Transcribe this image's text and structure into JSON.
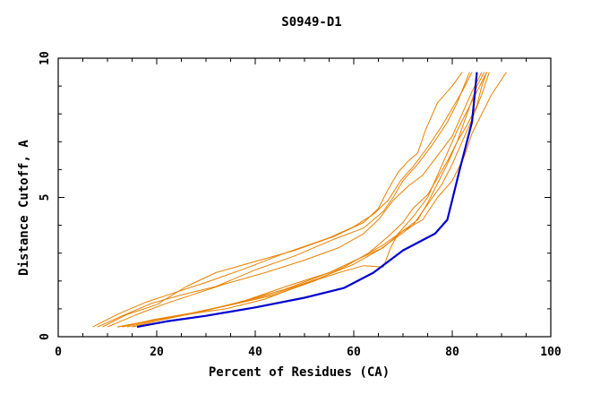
{
  "chart_data": {
    "type": "line",
    "title": "S0949-D1",
    "xlabel": "Percent of Residues (CA)",
    "ylabel": "Distance Cutoff, A",
    "xlim": [
      0,
      100
    ],
    "ylim": [
      0,
      10
    ],
    "x_ticks": [
      "0",
      "20",
      "40",
      "60",
      "80",
      "100"
    ],
    "y_ticks": [
      "0",
      "5",
      "10"
    ],
    "grid": false,
    "colors": {
      "highlight": "#0000cc",
      "others": "#e88000",
      "axes": "#000000"
    },
    "series": [
      {
        "highlight": true,
        "points": [
          [
            16,
            0.35
          ],
          [
            22,
            0.55
          ],
          [
            30,
            0.75
          ],
          [
            40,
            1.05
          ],
          [
            50,
            1.4
          ],
          [
            58,
            1.75
          ],
          [
            64,
            2.3
          ],
          [
            70,
            3.1
          ],
          [
            76.5,
            3.7
          ],
          [
            79,
            4.2
          ],
          [
            81.5,
            6.0
          ],
          [
            84,
            7.7
          ],
          [
            84.5,
            8.6
          ],
          [
            85,
            9.5
          ]
        ]
      },
      {
        "points": [
          [
            7,
            0.35
          ],
          [
            12,
            0.8
          ],
          [
            18,
            1.25
          ],
          [
            24,
            1.6
          ],
          [
            30,
            1.95
          ],
          [
            38,
            2.45
          ],
          [
            46,
            3.0
          ],
          [
            55,
            3.55
          ],
          [
            60,
            3.95
          ],
          [
            64,
            4.4
          ],
          [
            67,
            4.9
          ],
          [
            69.5,
            5.6
          ],
          [
            72,
            6.1
          ],
          [
            75,
            6.8
          ],
          [
            78,
            7.6
          ],
          [
            80,
            8.2
          ],
          [
            82,
            8.8
          ],
          [
            84,
            9.5
          ]
        ]
      },
      {
        "points": [
          [
            8,
            0.35
          ],
          [
            13,
            0.75
          ],
          [
            19,
            1.2
          ],
          [
            25,
            1.5
          ],
          [
            32,
            1.8
          ],
          [
            40,
            2.4
          ],
          [
            48,
            2.9
          ],
          [
            56,
            3.5
          ],
          [
            62,
            3.9
          ],
          [
            66,
            4.5
          ],
          [
            68,
            5.0
          ],
          [
            70,
            5.6
          ],
          [
            73,
            6.2
          ],
          [
            76,
            6.9
          ],
          [
            79,
            7.7
          ],
          [
            81,
            8.4
          ],
          [
            83.5,
            9.5
          ]
        ]
      },
      {
        "points": [
          [
            9,
            0.35
          ],
          [
            14,
            0.8
          ],
          [
            20,
            1.15
          ],
          [
            26,
            1.8
          ],
          [
            32,
            2.3
          ],
          [
            40,
            2.7
          ],
          [
            48,
            3.1
          ],
          [
            56,
            3.6
          ],
          [
            62,
            4.1
          ],
          [
            65,
            4.6
          ],
          [
            67,
            5.3
          ],
          [
            69,
            5.9
          ],
          [
            71,
            6.3
          ],
          [
            73,
            6.6
          ],
          [
            74.5,
            7.4
          ],
          [
            77,
            8.4
          ],
          [
            80,
            9.0
          ],
          [
            82,
            9.5
          ]
        ]
      },
      {
        "points": [
          [
            10,
            0.35
          ],
          [
            16,
            0.8
          ],
          [
            22,
            1.2
          ],
          [
            28,
            1.55
          ],
          [
            34,
            1.9
          ],
          [
            42,
            2.3
          ],
          [
            50,
            2.75
          ],
          [
            57,
            3.2
          ],
          [
            62,
            3.7
          ],
          [
            65,
            4.2
          ],
          [
            68,
            4.9
          ],
          [
            71,
            5.4
          ],
          [
            74,
            5.8
          ],
          [
            77,
            6.5
          ],
          [
            80,
            7.2
          ],
          [
            82,
            8.0
          ],
          [
            84,
            8.8
          ],
          [
            86,
            9.5
          ]
        ]
      },
      {
        "points": [
          [
            12,
            0.35
          ],
          [
            18,
            0.55
          ],
          [
            26,
            0.8
          ],
          [
            34,
            1.1
          ],
          [
            44,
            1.5
          ],
          [
            52,
            2.0
          ],
          [
            58,
            2.5
          ],
          [
            63,
            3.0
          ],
          [
            67,
            3.6
          ],
          [
            70,
            4.1
          ],
          [
            72,
            4.6
          ],
          [
            75,
            5.1
          ],
          [
            77,
            5.7
          ],
          [
            79,
            6.3
          ],
          [
            81,
            7.0
          ],
          [
            83,
            8.0
          ],
          [
            85,
            9.0
          ],
          [
            86.5,
            9.5
          ]
        ]
      },
      {
        "points": [
          [
            13,
            0.35
          ],
          [
            19,
            0.6
          ],
          [
            27,
            0.85
          ],
          [
            35,
            1.15
          ],
          [
            44,
            1.55
          ],
          [
            53,
            2.1
          ],
          [
            60,
            2.6
          ],
          [
            65,
            3.1
          ],
          [
            69,
            3.6
          ],
          [
            72,
            4.0
          ],
          [
            74,
            4.5
          ],
          [
            76,
            5.0
          ],
          [
            78,
            5.5
          ],
          [
            80,
            6.2
          ],
          [
            82,
            7.0
          ],
          [
            84,
            7.8
          ],
          [
            86,
            8.7
          ],
          [
            87.5,
            9.5
          ]
        ]
      },
      {
        "points": [
          [
            14,
            0.35
          ],
          [
            20,
            0.6
          ],
          [
            28,
            0.85
          ],
          [
            36,
            1.2
          ],
          [
            46,
            1.7
          ],
          [
            55,
            2.3
          ],
          [
            61,
            2.8
          ],
          [
            66,
            3.3
          ],
          [
            70,
            3.8
          ],
          [
            73,
            4.2
          ],
          [
            75,
            4.8
          ],
          [
            77,
            5.5
          ],
          [
            79,
            6.2
          ],
          [
            81,
            7.0
          ],
          [
            83,
            7.6
          ],
          [
            85,
            8.3
          ],
          [
            86,
            9.0
          ],
          [
            87,
            9.5
          ]
        ]
      },
      {
        "points": [
          [
            15,
            0.35
          ],
          [
            21,
            0.6
          ],
          [
            29,
            0.9
          ],
          [
            38,
            1.3
          ],
          [
            47,
            1.85
          ],
          [
            55,
            2.3
          ],
          [
            61,
            2.8
          ],
          [
            66,
            3.2
          ],
          [
            70,
            3.8
          ],
          [
            74,
            4.2
          ],
          [
            77,
            5.0
          ],
          [
            80,
            5.6
          ],
          [
            82.5,
            6.5
          ],
          [
            84,
            7.3
          ],
          [
            86,
            8.0
          ],
          [
            88,
            8.7
          ],
          [
            91,
            9.5
          ]
        ]
      },
      {
        "points": [
          [
            12,
            0.35
          ],
          [
            18,
            0.55
          ],
          [
            26,
            0.8
          ],
          [
            34,
            1.0
          ],
          [
            42,
            1.35
          ],
          [
            50,
            1.9
          ],
          [
            57,
            2.3
          ],
          [
            62,
            2.55
          ],
          [
            66,
            2.5
          ],
          [
            67.5,
            3.2
          ],
          [
            69,
            3.7
          ],
          [
            72,
            4.3
          ],
          [
            75,
            5.0
          ],
          [
            77,
            5.8
          ],
          [
            79,
            6.6
          ],
          [
            81,
            7.4
          ],
          [
            83,
            8.1
          ],
          [
            85,
            8.8
          ],
          [
            87,
            9.5
          ]
        ]
      }
    ]
  }
}
